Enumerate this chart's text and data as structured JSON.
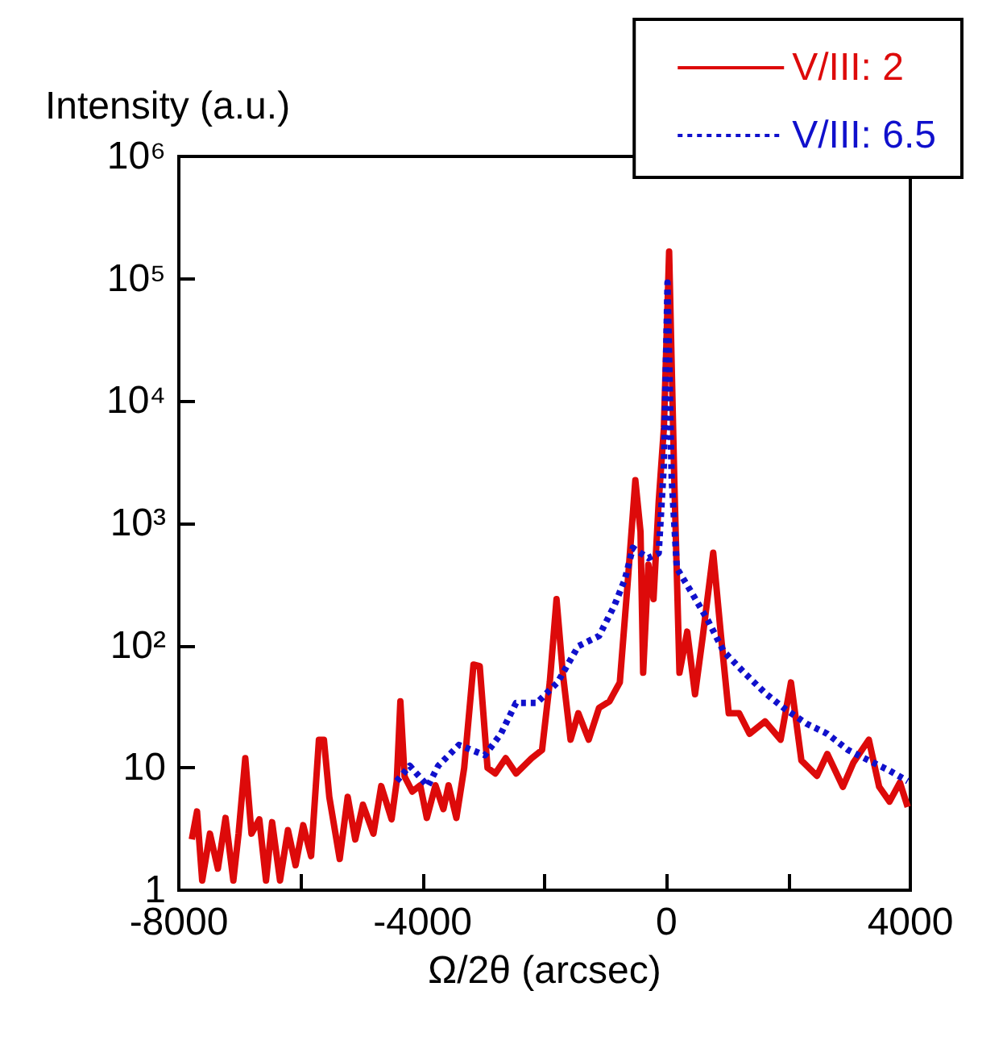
{
  "chart_data": {
    "type": "line",
    "ylabel": "Intensity (a.u.)",
    "xlabel": "Ω/2θ (arcsec)",
    "log": "y",
    "xlim": [
      -8000,
      4000
    ],
    "xticks": [
      -8000,
      {
        "value": -6000,
        "label": null
      },
      -4000,
      {
        "value": -2000,
        "label": null
      },
      0,
      {
        "value": 2000,
        "label": null
      },
      4000
    ],
    "ylim": [
      1,
      1000000
    ],
    "yticks": [
      1,
      10,
      {
        "value": 100,
        "label": "10²"
      },
      {
        "value": 1000,
        "label": "10³"
      },
      {
        "value": 10000,
        "label": "10⁴"
      },
      {
        "value": 100000,
        "label": "10⁵"
      },
      {
        "value": 1000000,
        "label": "10⁶"
      }
    ],
    "legend": "top right",
    "grid": false,
    "marker": "none",
    "series": [
      {
        "name": "V/III: 2",
        "color": "#dd0a0a",
        "line_style": "solid",
        "x": [
          -7787,
          -7702,
          -7617,
          -7490,
          -7360,
          -7234,
          -7106,
          -7020,
          -6910,
          -6808,
          -6680,
          -6570,
          -6470,
          -6340,
          -6210,
          -6085,
          -5960,
          -5830,
          -5702,
          -5620,
          -5532,
          -5361,
          -5230,
          -5106,
          -4980,
          -4808,
          -4680,
          -4510,
          -4425,
          -4366,
          -4297,
          -4170,
          -4040,
          -3932,
          -3790,
          -3660,
          -3575,
          -3447,
          -3319,
          -3166,
          -3064,
          -2936,
          -2808,
          -2638,
          -2468,
          -2213,
          -2042,
          -1915,
          -1804,
          -1702,
          -1574,
          -1447,
          -1276,
          -1106,
          -936,
          -766,
          -638,
          -511,
          -426,
          -383,
          -298,
          -213,
          -128,
          -43,
          43,
          128,
          213,
          340,
          468,
          596,
          766,
          894,
          1021,
          1191,
          1362,
          1617,
          1872,
          2042,
          2213,
          2468,
          2638,
          2893,
          3064,
          3319,
          3489,
          3659,
          3829,
          3957
        ],
        "values": [
          2.6,
          4.4,
          1.2,
          2.9,
          1.5,
          3.9,
          1.2,
          2.9,
          12,
          2.9,
          3.8,
          1.2,
          3.6,
          1.2,
          3.1,
          1.6,
          3.4,
          1.9,
          17,
          17,
          5.8,
          1.8,
          5.8,
          2.6,
          5,
          2.9,
          7.1,
          3.8,
          7.8,
          35,
          8.5,
          6.4,
          7.2,
          3.9,
          7.2,
          4.6,
          7.2,
          3.9,
          10,
          70,
          68,
          10,
          9,
          12,
          9,
          12,
          14,
          50,
          240,
          60,
          17,
          28,
          17,
          31,
          35,
          50,
          320,
          2250,
          850,
          60,
          460,
          240,
          1500,
          6000,
          167000,
          2250,
          60,
          130,
          40,
          120,
          575,
          120,
          28,
          28,
          19,
          24,
          17,
          50,
          11.5,
          8.6,
          13,
          7,
          11,
          17,
          7,
          5.3,
          7.6,
          4.8
        ]
      },
      {
        "name": "V/III: 6.5",
        "color": "#1010cc",
        "line_style": "dotted",
        "x": [
          -4425,
          -4212,
          -3915,
          -3745,
          -3404,
          -2979,
          -2723,
          -2468,
          -2128,
          -1787,
          -1447,
          -1106,
          -851,
          -681,
          -553,
          -298,
          -128,
          -43,
          17,
          85,
          170,
          425,
          681,
          936,
          1276,
          1617,
          1957,
          2298,
          2638,
          2979,
          3319,
          3659,
          3957
        ],
        "values": [
          7.8,
          10.4,
          7.1,
          10.4,
          15.4,
          12.7,
          18.8,
          34,
          34,
          50,
          99,
          120,
          215,
          350,
          630,
          520,
          570,
          3000,
          93000,
          2300,
          430,
          265,
          160,
          90,
          60,
          41,
          30,
          23,
          19,
          14,
          11.5,
          9.5,
          7.8
        ]
      }
    ]
  }
}
